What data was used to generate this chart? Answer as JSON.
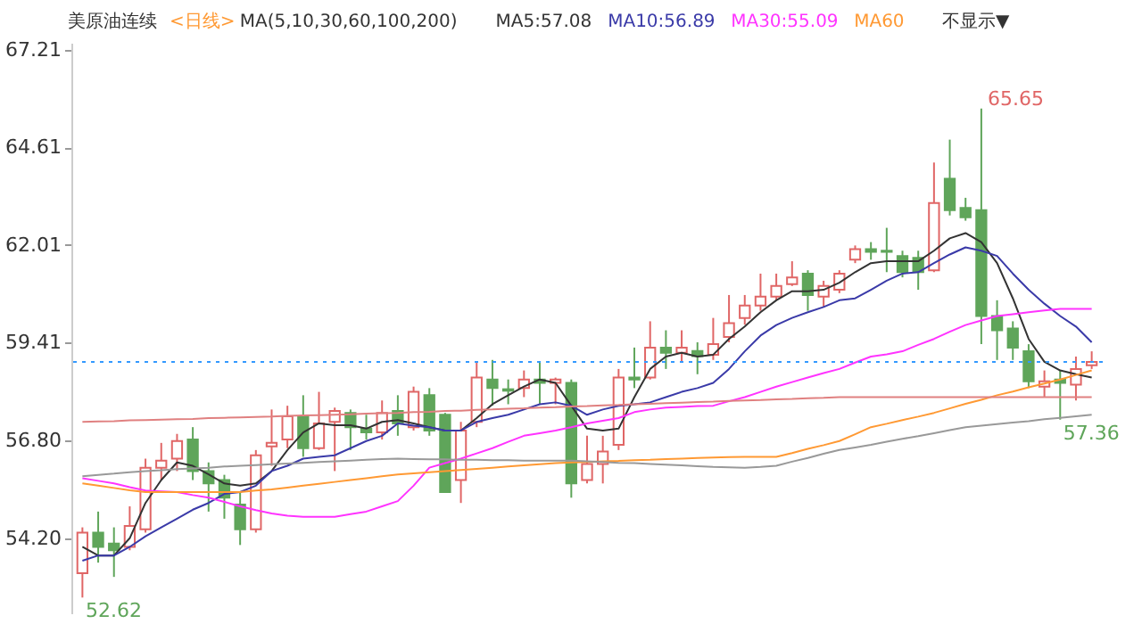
{
  "chart_data": {
    "type": "candlestick",
    "title": "美原油连续",
    "annotations": [
      "<日线>",
      "MA(5,10,30,60,100,200)",
      "不显示▼",
      "65.65",
      "52.62",
      "57.36"
    ],
    "categories": [
      null,
      null,
      null,
      null,
      null,
      null,
      null,
      null,
      null,
      null,
      null,
      null,
      null,
      null,
      null,
      null,
      null,
      null,
      null,
      null,
      null,
      null,
      null,
      null,
      null,
      null,
      null,
      null,
      null,
      null,
      null,
      null,
      null,
      null,
      null,
      null,
      null,
      null,
      null,
      null,
      null,
      null,
      null,
      null,
      null,
      null,
      null,
      null,
      null,
      null,
      null,
      null,
      null,
      null,
      null,
      null,
      null,
      null,
      null,
      null,
      null,
      null,
      null,
      null,
      null
    ],
    "ohlc": [
      [
        53.27,
        54.49,
        52.62,
        54.35
      ],
      [
        54.35,
        54.91,
        53.55,
        53.97
      ],
      [
        54.06,
        54.49,
        53.17,
        53.88
      ],
      [
        53.97,
        55.05,
        53.88,
        54.53
      ],
      [
        54.44,
        56.32,
        54.35,
        56.08
      ],
      [
        56.08,
        56.74,
        55.75,
        56.27
      ],
      [
        56.32,
        56.98,
        55.99,
        56.79
      ],
      [
        56.83,
        57.16,
        55.75,
        55.99
      ],
      [
        55.99,
        56.22,
        54.91,
        55.66
      ],
      [
        55.75,
        55.89,
        54.72,
        55.28
      ],
      [
        55.1,
        55.43,
        54.02,
        54.44
      ],
      [
        54.44,
        56.55,
        54.35,
        56.41
      ],
      [
        56.65,
        57.63,
        56.13,
        56.74
      ],
      [
        56.83,
        57.73,
        56.6,
        57.45
      ],
      [
        57.45,
        58.01,
        56.37,
        56.6
      ],
      [
        56.6,
        58.1,
        56.55,
        57.26
      ],
      [
        57.3,
        57.68,
        55.99,
        57.59
      ],
      [
        57.54,
        57.63,
        56.55,
        57.16
      ],
      [
        57.12,
        57.49,
        56.83,
        57.02
      ],
      [
        57.02,
        57.87,
        56.83,
        57.54
      ],
      [
        57.59,
        58.01,
        56.93,
        57.26
      ],
      [
        57.16,
        58.24,
        57.07,
        58.1
      ],
      [
        58.01,
        58.2,
        56.93,
        57.07
      ],
      [
        57.49,
        57.54,
        55.43,
        55.43
      ],
      [
        55.75,
        57.3,
        55.14,
        57.07
      ],
      [
        57.3,
        58.9,
        57.16,
        58.48
      ],
      [
        58.43,
        58.95,
        57.73,
        58.2
      ],
      [
        58.17,
        58.43,
        57.77,
        58.13
      ],
      [
        58.2,
        58.67,
        57.96,
        58.43
      ],
      [
        58.43,
        58.9,
        57.77,
        58.34
      ],
      [
        58.34,
        58.48,
        57.77,
        58.43
      ],
      [
        58.34,
        58.43,
        55.28,
        55.66
      ],
      [
        55.75,
        56.93,
        55.66,
        56.18
      ],
      [
        56.18,
        56.93,
        55.66,
        56.51
      ],
      [
        56.69,
        58.71,
        56.55,
        58.48
      ],
      [
        58.48,
        59.28,
        58.2,
        58.43
      ],
      [
        58.48,
        59.98,
        58.43,
        59.28
      ],
      [
        59.28,
        59.74,
        58.71,
        59.14
      ],
      [
        59.14,
        59.74,
        58.9,
        59.28
      ],
      [
        59.19,
        59.42,
        58.57,
        59.05
      ],
      [
        59.09,
        60.07,
        58.95,
        59.37
      ],
      [
        59.56,
        60.68,
        59.42,
        59.93
      ],
      [
        60.07,
        60.68,
        59.89,
        60.4
      ],
      [
        60.4,
        61.25,
        60.26,
        60.64
      ],
      [
        60.64,
        61.25,
        60.54,
        60.92
      ],
      [
        60.97,
        61.58,
        60.92,
        61.15
      ],
      [
        61.25,
        61.34,
        60.26,
        60.68
      ],
      [
        60.64,
        61.06,
        60.36,
        60.92
      ],
      [
        60.82,
        61.34,
        60.73,
        61.25
      ],
      [
        61.62,
        62.0,
        61.53,
        61.9
      ],
      [
        61.9,
        62.09,
        61.62,
        61.83
      ],
      [
        61.86,
        62.47,
        61.29,
        61.83
      ],
      [
        61.72,
        61.86,
        61.15,
        61.29
      ],
      [
        61.67,
        61.86,
        60.82,
        61.29
      ],
      [
        61.34,
        64.21,
        61.29,
        63.13
      ],
      [
        63.78,
        64.82,
        62.8,
        62.94
      ],
      [
        63.0,
        63.27,
        62.66,
        62.75
      ],
      [
        62.94,
        65.65,
        59.37,
        60.12
      ],
      [
        60.12,
        60.54,
        58.95,
        59.74
      ],
      [
        59.79,
        59.98,
        58.95,
        59.28
      ],
      [
        59.18,
        59.37,
        58.2,
        58.38
      ],
      [
        58.24,
        58.67,
        57.96,
        58.38
      ],
      [
        58.43,
        58.67,
        57.36,
        58.34
      ],
      [
        58.29,
        59.04,
        57.87,
        58.71
      ],
      [
        58.81,
        59.18,
        58.71,
        58.9
      ]
    ],
    "colors": [
      "#e06666",
      "#5fa55a",
      "#5fa55a",
      "#e06666",
      "#e06666",
      "#e06666",
      "#e06666",
      "#5fa55a",
      "#5fa55a",
      "#5fa55a",
      "#5fa55a",
      "#e06666",
      "#e06666",
      "#e06666",
      "#5fa55a",
      "#e06666",
      "#e06666",
      "#5fa55a",
      "#5fa55a",
      "#e06666",
      "#5fa55a",
      "#e06666",
      "#5fa55a",
      "#5fa55a",
      "#e06666",
      "#e06666",
      "#5fa55a",
      "#5fa55a",
      "#e06666",
      "#5fa55a",
      "#e06666",
      "#5fa55a",
      "#e06666",
      "#e06666",
      "#e06666",
      "#5fa55a",
      "#e06666",
      "#5fa55a",
      "#e06666",
      "#5fa55a",
      "#e06666",
      "#e06666",
      "#e06666",
      "#e06666",
      "#e06666",
      "#e06666",
      "#5fa55a",
      "#e06666",
      "#e06666",
      "#e06666",
      "#5fa55a",
      "#5fa55a",
      "#5fa55a",
      "#5fa55a",
      "#e06666",
      "#5fa55a",
      "#5fa55a",
      "#5fa55a",
      "#5fa55a",
      "#5fa55a",
      "#5fa55a",
      "#e06666",
      "#5fa55a",
      "#e06666",
      "#e06666"
    ],
    "series": [
      {
        "name": "MA5:57.08",
        "type": "line",
        "color": "#333333",
        "values": [
          53.97,
          53.74,
          53.74,
          54.2,
          55.14,
          55.75,
          56.22,
          56.13,
          55.9,
          55.66,
          55.6,
          55.66,
          55.99,
          56.55,
          57.02,
          57.26,
          57.21,
          57.21,
          57.12,
          57.3,
          57.35,
          57.26,
          57.16,
          57.07,
          57.07,
          57.4,
          57.77,
          58.01,
          58.24,
          58.43,
          58.34,
          57.73,
          57.12,
          57.07,
          57.12,
          57.96,
          58.71,
          59.04,
          59.14,
          59.04,
          59.09,
          59.51,
          59.84,
          60.22,
          60.54,
          60.78,
          60.78,
          60.82,
          61.01,
          61.29,
          61.53,
          61.58,
          61.58,
          61.58,
          61.86,
          62.19,
          62.33,
          62.09,
          61.53,
          60.59,
          59.51,
          58.9,
          58.67,
          58.57,
          58.48
        ]
      },
      {
        "name": "MA10:56.89",
        "type": "line",
        "color": "#3a3aa8",
        "values": [
          53.6,
          53.74,
          53.74,
          53.97,
          54.25,
          54.49,
          54.72,
          54.96,
          55.14,
          55.38,
          55.43,
          55.6,
          55.99,
          56.13,
          56.32,
          56.37,
          56.41,
          56.6,
          56.79,
          56.93,
          57.26,
          57.2,
          57.16,
          57.07,
          57.07,
          57.3,
          57.4,
          57.49,
          57.63,
          57.77,
          57.82,
          57.73,
          57.49,
          57.63,
          57.73,
          57.77,
          57.82,
          57.96,
          58.1,
          58.2,
          58.34,
          58.71,
          59.18,
          59.6,
          59.88,
          60.07,
          60.22,
          60.36,
          60.54,
          60.59,
          60.82,
          61.06,
          61.25,
          61.29,
          61.53,
          61.76,
          61.95,
          61.86,
          61.72,
          61.25,
          60.82,
          60.45,
          60.12,
          59.84,
          59.42
        ]
      },
      {
        "name": "MA30:55.09",
        "type": "line",
        "color": "#ff33ff",
        "values": [
          55.8,
          55.73,
          55.66,
          55.56,
          55.47,
          55.45,
          55.43,
          55.35,
          55.28,
          55.17,
          55.05,
          54.95,
          54.86,
          54.8,
          54.77,
          54.77,
          54.77,
          54.84,
          54.91,
          55.05,
          55.19,
          55.6,
          56.08,
          56.2,
          56.32,
          56.46,
          56.6,
          56.77,
          56.93,
          57.0,
          57.07,
          57.16,
          57.26,
          57.33,
          57.4,
          57.56,
          57.63,
          57.68,
          57.7,
          57.72,
          57.73,
          57.85,
          57.96,
          58.1,
          58.24,
          58.36,
          58.48,
          58.6,
          58.71,
          58.88,
          59.04,
          59.1,
          59.18,
          59.35,
          59.51,
          59.7,
          59.88,
          60.0,
          60.12,
          60.17,
          60.22,
          60.27,
          60.31,
          60.31,
          60.31
        ]
      },
      {
        "name": "MA60",
        "type": "line",
        "color": "#ff9933",
        "values": [
          55.66,
          55.6,
          55.54,
          55.48,
          55.43,
          55.43,
          55.43,
          55.43,
          55.43,
          55.43,
          55.43,
          55.47,
          55.5,
          55.55,
          55.6,
          55.65,
          55.7,
          55.75,
          55.8,
          55.85,
          55.9,
          55.93,
          55.96,
          55.99,
          56.02,
          56.05,
          56.08,
          56.11,
          56.14,
          56.17,
          56.2,
          56.22,
          56.23,
          56.25,
          56.26,
          56.28,
          56.29,
          56.31,
          56.32,
          56.34,
          56.35,
          56.36,
          56.37,
          56.37,
          56.37,
          56.47,
          56.58,
          56.68,
          56.79,
          56.97,
          57.16,
          57.25,
          57.35,
          57.44,
          57.54,
          57.66,
          57.78,
          57.89,
          58.01,
          58.11,
          58.22,
          58.32,
          58.43,
          58.55,
          58.67
        ]
      },
      {
        "type": "line",
        "color": "#999999",
        "values": [
          55.85,
          55.89,
          55.92,
          55.96,
          55.99,
          56.01,
          56.04,
          56.06,
          56.08,
          56.11,
          56.13,
          56.15,
          56.17,
          56.19,
          56.21,
          56.23,
          56.25,
          56.27,
          56.29,
          56.31,
          56.32,
          56.31,
          56.3,
          56.3,
          56.29,
          56.29,
          56.28,
          56.28,
          56.27,
          56.27,
          56.27,
          56.27,
          56.25,
          56.23,
          56.21,
          56.2,
          56.18,
          56.16,
          56.14,
          56.12,
          56.1,
          56.09,
          56.08,
          56.1,
          56.13,
          56.24,
          56.34,
          56.45,
          56.55,
          56.62,
          56.69,
          56.77,
          56.85,
          56.92,
          57.0,
          57.08,
          57.16,
          57.2,
          57.24,
          57.28,
          57.32,
          57.37,
          57.41,
          57.45,
          57.49
        ]
      },
      {
        "type": "line",
        "color": "#e08080",
        "values": [
          57.3,
          57.31,
          57.32,
          57.34,
          57.35,
          57.36,
          57.37,
          57.38,
          57.4,
          57.41,
          57.42,
          57.43,
          57.44,
          57.46,
          57.47,
          57.48,
          57.49,
          57.5,
          57.52,
          57.53,
          57.54,
          57.56,
          57.57,
          57.59,
          57.6,
          57.62,
          57.63,
          57.65,
          57.66,
          57.68,
          57.69,
          57.71,
          57.72,
          57.74,
          57.75,
          57.77,
          57.78,
          57.8,
          57.81,
          57.83,
          57.84,
          57.86,
          57.87,
          57.88,
          57.9,
          57.91,
          57.93,
          57.94,
          57.96,
          57.96,
          57.96,
          57.96,
          57.96,
          57.96,
          57.96,
          57.96,
          57.96,
          57.96,
          57.96,
          57.96,
          57.96,
          57.96,
          57.96,
          57.96,
          57.96
        ]
      }
    ],
    "ylim": [
      52.2,
      67.4
    ],
    "yticks": [
      67.21,
      64.61,
      62.01,
      59.41,
      {
        "value": 56.8,
        "label": "56.80"
      },
      {
        "value": 54.2,
        "label": "54.20"
      }
    ],
    "ref_lines": [
      {
        "axis": "y",
        "value": 58.9,
        "color": "#3399ff",
        "line_style": "dotted"
      }
    ],
    "legend": "top"
  }
}
